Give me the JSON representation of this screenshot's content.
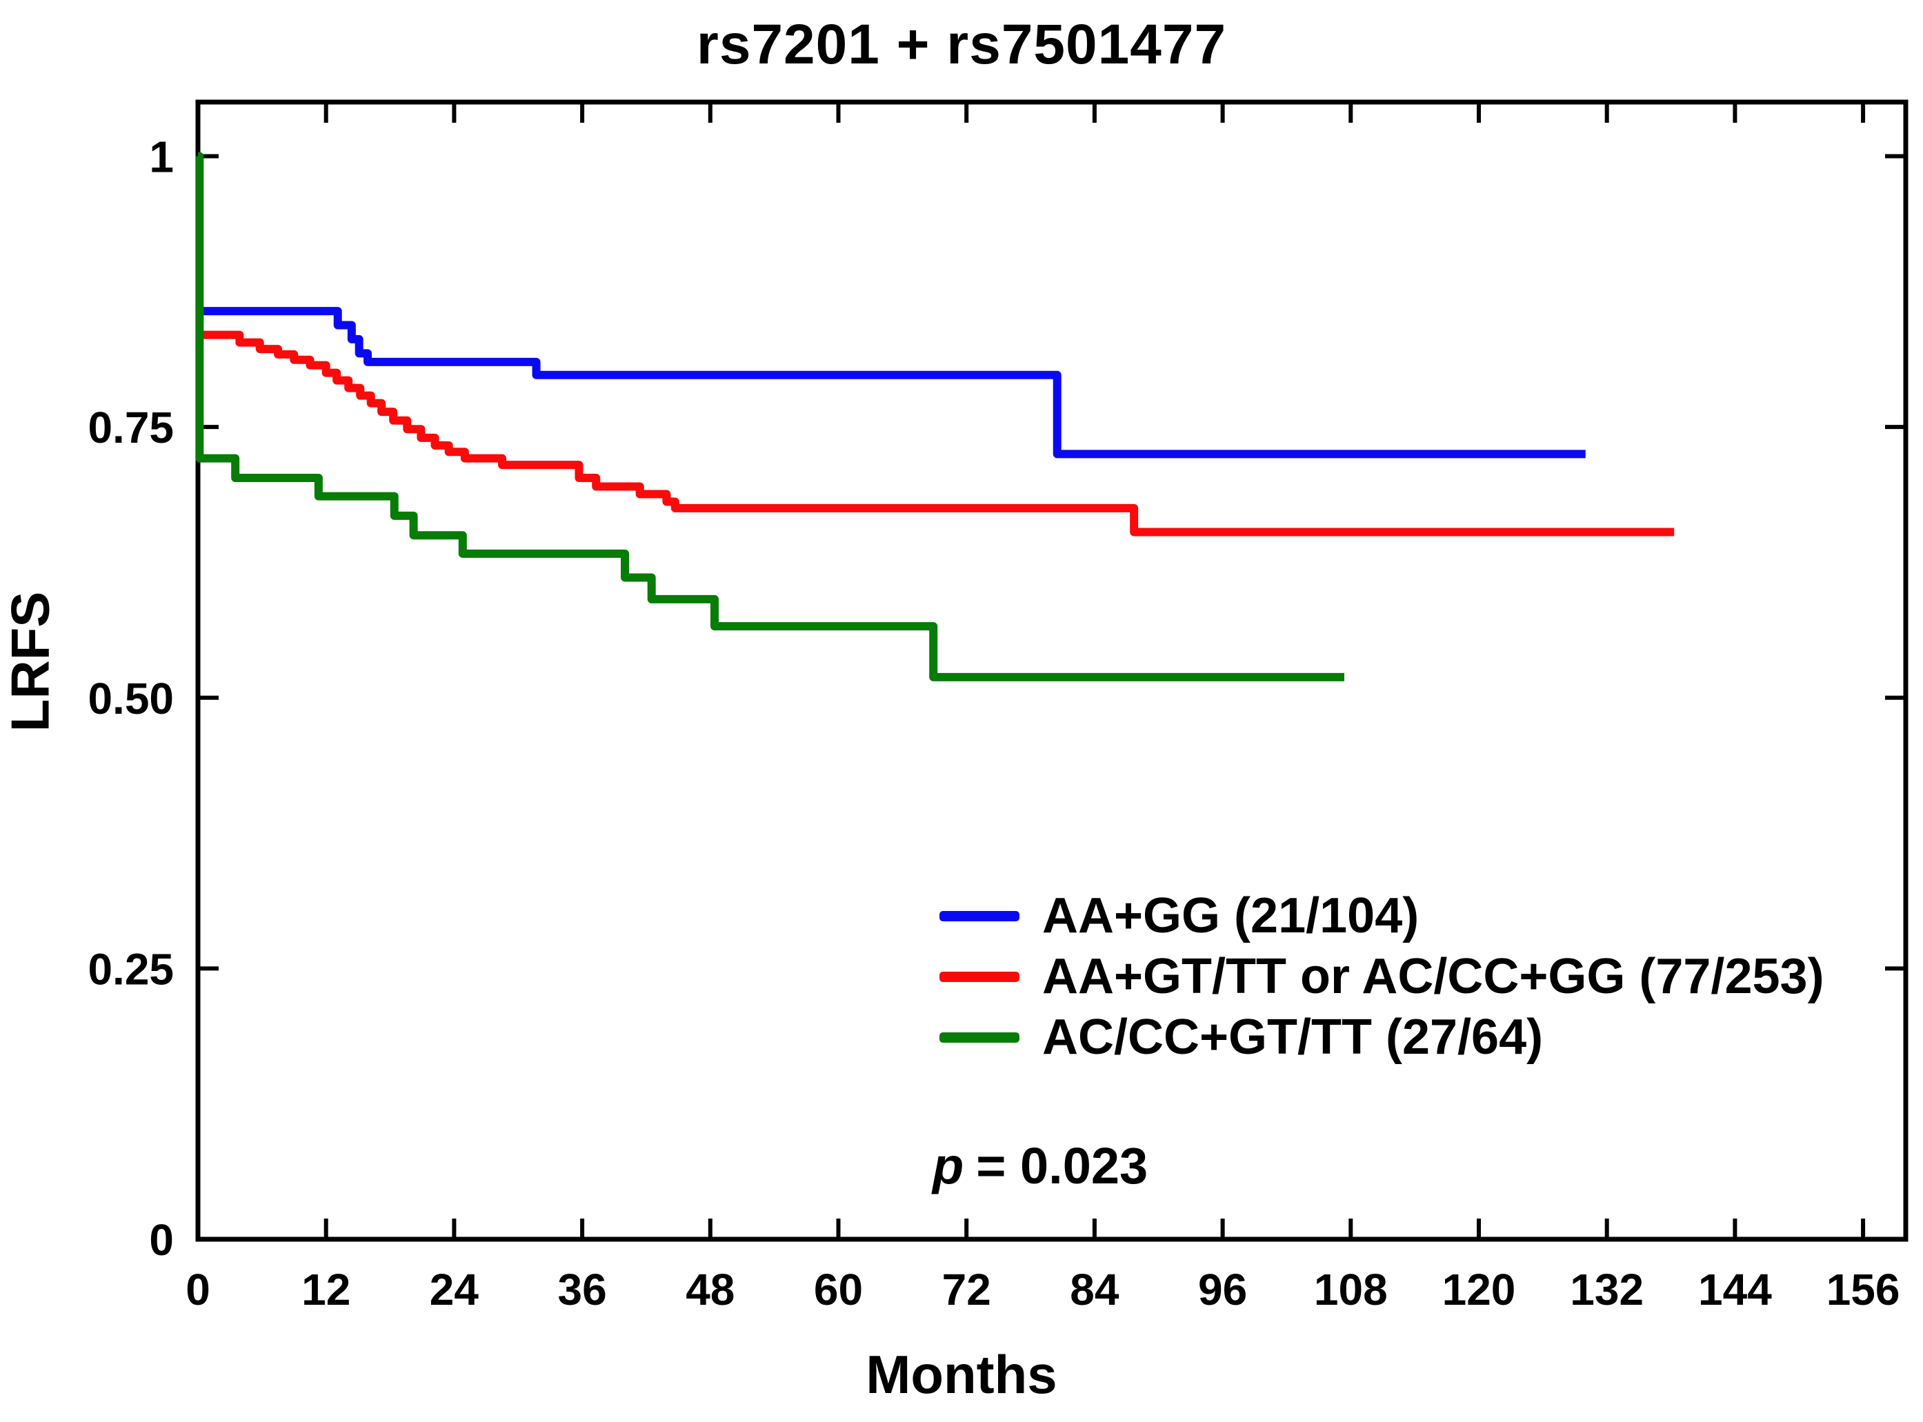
{
  "figure": {
    "title": "rs7201 + rs7501477",
    "xlabel": "Months",
    "ylabel": "LRFS",
    "p_symbol": "p",
    "p_text": "= 0.023"
  },
  "chart_data": {
    "type": "line",
    "subtype": "kaplan-meier-step-curves",
    "title": "rs7201 + rs7501477",
    "xlabel": "Months",
    "ylabel": "LRFS",
    "xlim": [
      0,
      160
    ],
    "ylim": [
      0,
      1.05
    ],
    "xticks": [
      0,
      12,
      24,
      36,
      48,
      60,
      72,
      84,
      96,
      108,
      120,
      132,
      144,
      156
    ],
    "yticks": [
      {
        "v": 0,
        "label": "0"
      },
      {
        "v": 0.25,
        "label": "0.25"
      },
      {
        "v": 0.5,
        "label": "0.50"
      },
      {
        "v": 0.75,
        "label": "0.75"
      },
      {
        "v": 1,
        "label": "1"
      }
    ],
    "grid": false,
    "legend_position": "inside-lower-right",
    "annotation": "p = 0.023",
    "series": [
      {
        "name": "AA+GG (21/104)",
        "color": "#0a0af2",
        "step_points": [
          [
            0,
            0.857
          ],
          [
            13.1,
            0.844
          ],
          [
            14.4,
            0.831
          ],
          [
            15.1,
            0.818
          ],
          [
            15.9,
            0.81
          ],
          [
            31.7,
            0.798
          ],
          [
            80.5,
            0.725
          ]
        ],
        "end_x": 130
      },
      {
        "name": "AA+GT/TT or AC/CC+GG (77/253)",
        "color": "#fa0a0a",
        "step_points": [
          [
            0,
            0.835
          ],
          [
            3.9,
            0.828
          ],
          [
            5.8,
            0.822
          ],
          [
            7.5,
            0.817
          ],
          [
            9.0,
            0.812
          ],
          [
            10.5,
            0.807
          ],
          [
            12.0,
            0.8
          ],
          [
            13.0,
            0.793
          ],
          [
            14.1,
            0.786
          ],
          [
            15.2,
            0.779
          ],
          [
            16.2,
            0.772
          ],
          [
            17.2,
            0.764
          ],
          [
            18.3,
            0.756
          ],
          [
            19.6,
            0.748
          ],
          [
            20.9,
            0.74
          ],
          [
            22.2,
            0.733
          ],
          [
            23.5,
            0.727
          ],
          [
            25.0,
            0.721
          ],
          [
            28.5,
            0.715
          ],
          [
            35.7,
            0.703
          ],
          [
            37.3,
            0.695
          ],
          [
            41.4,
            0.688
          ],
          [
            43.9,
            0.681
          ],
          [
            44.7,
            0.675
          ],
          [
            87.7,
            0.653
          ]
        ],
        "end_x": 138.3
      },
      {
        "name": "AC/CC+GT/TT (27/64)",
        "color": "#077c07",
        "step_points": [
          [
            0,
            1.0
          ],
          [
            0.15,
            0.721
          ],
          [
            3.5,
            0.703
          ],
          [
            11.3,
            0.686
          ],
          [
            18.4,
            0.668
          ],
          [
            20.2,
            0.65
          ],
          [
            24.8,
            0.633
          ],
          [
            40.0,
            0.611
          ],
          [
            42.5,
            0.591
          ],
          [
            48.4,
            0.566
          ],
          [
            68.9,
            0.519
          ]
        ],
        "end_x": 107.4
      }
    ]
  }
}
